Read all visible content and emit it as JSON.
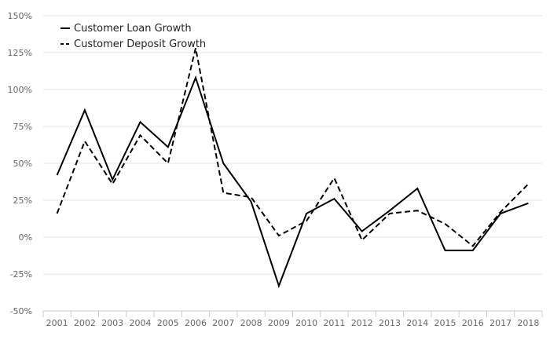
{
  "chart_data": {
    "type": "line",
    "title": "",
    "xlabel": "",
    "ylabel": "",
    "ylim": [
      -50,
      150
    ],
    "grid": true,
    "legend_position": "top-left",
    "categories": [
      "2001",
      "2002",
      "2003",
      "2004",
      "2005",
      "2006",
      "2007",
      "2008",
      "2009",
      "2010",
      "2011",
      "2012",
      "2013",
      "2014",
      "2015",
      "2016",
      "2017",
      "2018"
    ],
    "y_ticks": [
      {
        "value": 150,
        "label": "150%"
      },
      {
        "value": 125,
        "label": "125%"
      },
      {
        "value": 100,
        "label": "100%"
      },
      {
        "value": 75,
        "label": "75%"
      },
      {
        "value": 50,
        "label": "50%"
      },
      {
        "value": 25,
        "label": "25%"
      },
      {
        "value": 0,
        "label": "0%"
      },
      {
        "value": -25,
        "label": "-25%"
      },
      {
        "value": -50,
        "label": "-50%"
      }
    ],
    "series": [
      {
        "name": "Customer Loan Growth",
        "color": "#000000",
        "dash": "solid",
        "values": [
          42,
          86,
          39,
          78,
          61,
          108,
          50,
          24,
          -33,
          16,
          26,
          4,
          18,
          33,
          -9,
          -9,
          16,
          23
        ]
      },
      {
        "name": "Customer Deposit Growth",
        "color": "#000000",
        "dash": "dashed",
        "values": [
          16,
          65,
          36,
          69,
          50,
          128,
          30,
          27,
          1,
          11,
          40,
          -2,
          16,
          18,
          9,
          -6,
          17,
          36
        ]
      }
    ]
  }
}
